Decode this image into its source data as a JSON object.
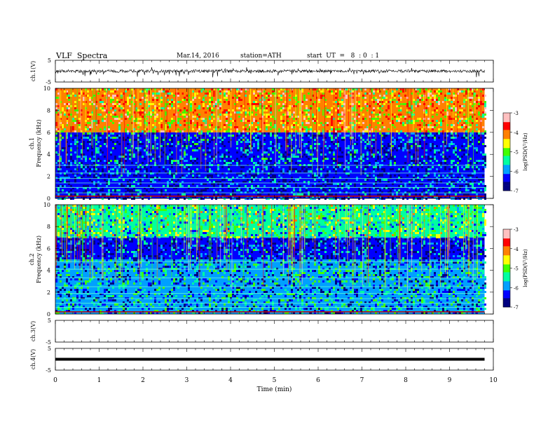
{
  "header": {
    "title": "VLF  Spectra",
    "date": "Mar.14, 2016",
    "station": "station=ATH",
    "start": "start  UT  =   8  : 0  : 1"
  },
  "chart_data": [
    {
      "type": "line",
      "panel": "ch1-waveform",
      "ylabel": "ch.1(V)",
      "ylim": [
        -5,
        5
      ],
      "yticks": [
        "5",
        "-5"
      ],
      "baseline_approx": 0,
      "description_values": "noisy waveform oscillating near 0 V with spikes to about -3 V and +2 V"
    },
    {
      "type": "heatmap",
      "panel": "ch1-spectrogram",
      "ylabel": [
        "ch.1",
        "Frequency (kHz)"
      ],
      "ylim": [
        0,
        10
      ],
      "yticks": [
        "0",
        "2",
        "4",
        "6",
        "8",
        "10"
      ],
      "colorbar": {
        "label": "log(PSD(V²/Hz)",
        "range": [
          -7,
          -3
        ],
        "ticks": [
          "-3",
          "-4",
          "-5",
          "-6",
          "-7"
        ]
      },
      "bands_kHz": [
        {
          "from": 6,
          "to": 10,
          "level": -4.3
        },
        {
          "from": 3,
          "to": 6,
          "level": -6.2
        },
        {
          "from": 0,
          "to": 3,
          "level": -6.4
        }
      ],
      "lines_kHz": [
        0.2,
        0.5,
        1.0,
        1.4,
        1.8,
        2.3,
        3.0
      ]
    },
    {
      "type": "heatmap",
      "panel": "ch2-spectrogram",
      "ylabel": [
        "ch.2",
        "Frequency (kHz)"
      ],
      "ylim": [
        0,
        10
      ],
      "yticks": [
        "0",
        "2",
        "4",
        "6",
        "8",
        "10"
      ],
      "colorbar": {
        "label": "log(PSD(V²/Hz)",
        "range": [
          -7,
          -3
        ],
        "ticks": [
          "-3",
          "-4",
          "-5",
          "-6",
          "-7"
        ]
      },
      "bands_kHz": [
        {
          "from": 7,
          "to": 10,
          "level": -5.3
        },
        {
          "from": 5,
          "to": 7,
          "level": -6.3
        },
        {
          "from": 0,
          "to": 5,
          "level": -5.9
        }
      ],
      "lines_kHz": [
        0.2,
        0.6,
        1.0,
        1.4,
        1.9,
        2.5,
        3.3,
        4.1,
        4.8
      ]
    },
    {
      "type": "line",
      "panel": "ch3-waveform",
      "ylabel": "ch.3(V)",
      "ylim": [
        -5,
        5
      ],
      "yticks": [
        "5",
        "-5"
      ],
      "description_values": "no signal"
    },
    {
      "type": "line",
      "panel": "ch4-waveform",
      "ylabel": "ch.4(V)",
      "ylim": [
        -5,
        5
      ],
      "yticks": [
        "5",
        "-5"
      ],
      "constant_value": 0,
      "description_values": "flat thick line near 0 V"
    }
  ],
  "xaxis": {
    "label": "Time  (min)",
    "xlim": [
      0,
      10
    ],
    "data_end": 9.8,
    "ticks": [
      "0",
      "1",
      "2",
      "3",
      "4",
      "5",
      "6",
      "7",
      "8",
      "9",
      "10"
    ]
  },
  "colors": {
    "scale": [
      "#000080",
      "#0000ff",
      "#00a0ff",
      "#00ffa0",
      "#40ff00",
      "#ffff00",
      "#ff8000",
      "#ff0000",
      "#ffc0c0"
    ]
  }
}
